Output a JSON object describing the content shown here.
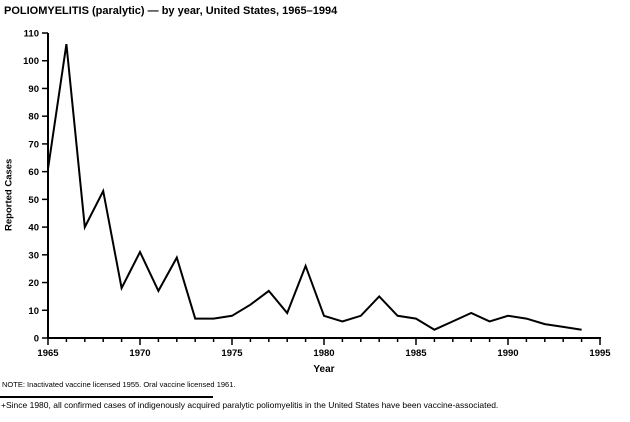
{
  "title": "POLIOMYELITIS (paralytic) — by year, United States, 1965–1994",
  "notes": {
    "note": "NOTE: Inactivated vaccine licensed 1955. Oral vaccine licensed 1961.",
    "footnote": "+Since 1980, all confirmed cases of indigenously acquired paralytic poliomyelitis in the United States have been vaccine-associated."
  },
  "chart_data": {
    "type": "line",
    "title": "POLIOMYELITIS (paralytic) — by year, United States, 1965–1994",
    "xlabel": "Year",
    "ylabel": "Reported  Cases",
    "x": [
      1965,
      1966,
      1967,
      1968,
      1969,
      1970,
      1971,
      1972,
      1973,
      1974,
      1975,
      1976,
      1977,
      1978,
      1979,
      1980,
      1981,
      1982,
      1983,
      1984,
      1985,
      1986,
      1987,
      1988,
      1989,
      1990,
      1991,
      1992,
      1993,
      1994
    ],
    "values": [
      61,
      106,
      40,
      53,
      18,
      31,
      17,
      29,
      7,
      7,
      8,
      12,
      17,
      9,
      26,
      8,
      6,
      8,
      15,
      8,
      7,
      3,
      6,
      9,
      6,
      8,
      7,
      5,
      4,
      3
    ],
    "xlim": [
      1965,
      1995
    ],
    "ylim": [
      0,
      110
    ],
    "ytick_step": 10,
    "xtick_major_step": 5,
    "xtick_minor_step": 1,
    "grid": false,
    "legend": "none",
    "line_color": "#000000",
    "axis_color": "#000000",
    "background_color": "#ffffff"
  }
}
